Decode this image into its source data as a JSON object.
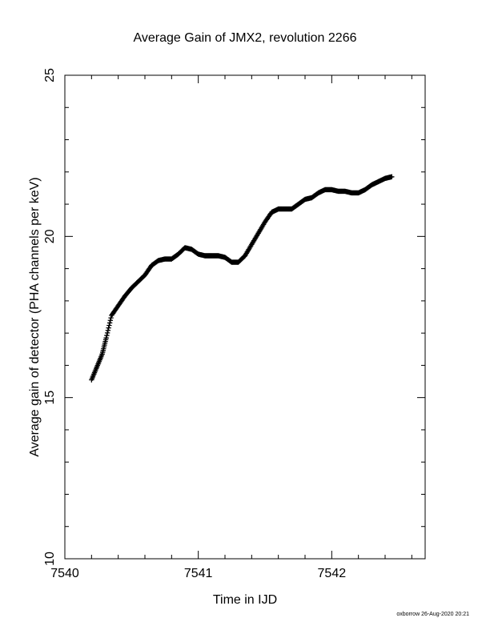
{
  "chart_data": {
    "type": "scatter",
    "title": "Average Gain of JMX2, revolution 2266",
    "xlabel": "Time in IJD",
    "ylabel": "Average gain of detector (PHA channels per keV)",
    "xlim": [
      7540,
      7542.7
    ],
    "ylim": [
      10,
      25
    ],
    "xticks": [
      7540,
      7541,
      7542
    ],
    "yticks": [
      10,
      15,
      20,
      25
    ],
    "grid": false,
    "marker": "plus",
    "series": [
      {
        "x": [
          7540.2,
          7540.24,
          7540.28,
          7540.31,
          7540.35,
          7540.4,
          7540.45,
          7540.5,
          7540.55,
          7540.6,
          7540.65,
          7540.7,
          7540.75,
          7540.8,
          7540.85,
          7540.9,
          7540.95,
          7541.0,
          7541.05,
          7541.1,
          7541.15,
          7541.2,
          7541.25,
          7541.3,
          7541.35,
          7541.4,
          7541.45,
          7541.5,
          7541.55,
          7541.6,
          7541.65,
          7541.7,
          7541.75,
          7541.8,
          7541.85,
          7541.9,
          7541.95,
          7542.0,
          7542.05,
          7542.1,
          7542.15,
          7542.2,
          7542.25,
          7542.3,
          7542.35,
          7542.4,
          7542.45
        ],
        "y": [
          15.55,
          15.95,
          16.35,
          16.85,
          17.55,
          17.85,
          18.15,
          18.4,
          18.6,
          18.8,
          19.1,
          19.25,
          19.3,
          19.3,
          19.45,
          19.65,
          19.6,
          19.45,
          19.4,
          19.4,
          19.4,
          19.35,
          19.2,
          19.2,
          19.4,
          19.75,
          20.1,
          20.45,
          20.75,
          20.85,
          20.85,
          20.85,
          21.0,
          21.15,
          21.2,
          21.35,
          21.45,
          21.45,
          21.4,
          21.4,
          21.35,
          21.35,
          21.45,
          21.6,
          21.7,
          21.8,
          21.85
        ]
      }
    ]
  },
  "footer": {
    "stamp": "oxborrow 26-Aug-2020 20:21"
  }
}
